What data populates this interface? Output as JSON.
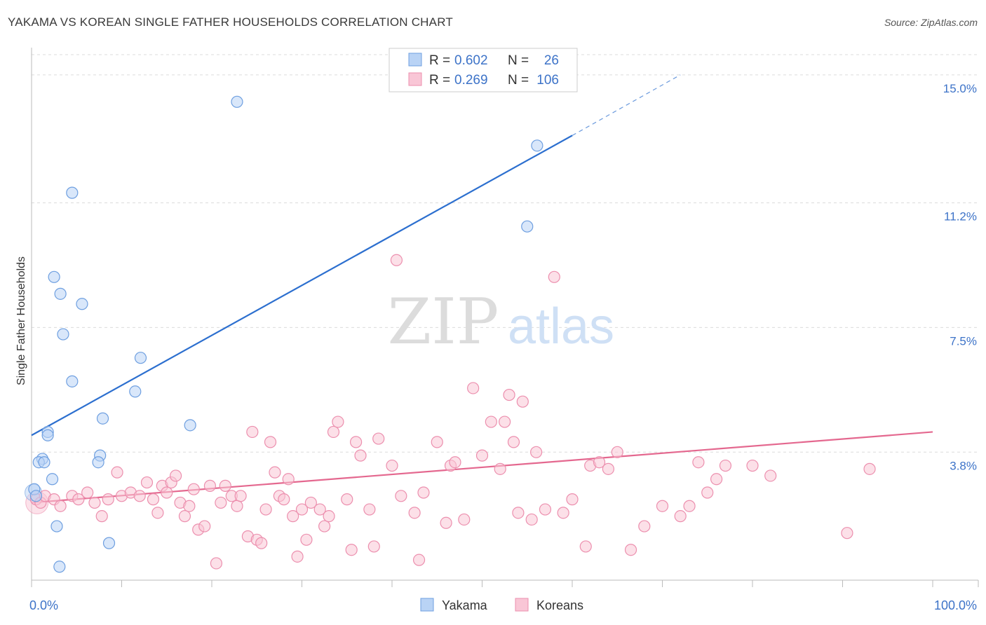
{
  "title": "YAKAMA VS KOREAN SINGLE FATHER HOUSEHOLDS CORRELATION CHART",
  "source": "Source: ZipAtlas.com",
  "watermark": {
    "zip": "ZIP",
    "atlas": "atlas"
  },
  "colors": {
    "yakama_fill": "#b9d3f5",
    "yakama_stroke": "#6e9fe0",
    "yakama_line": "#2c6fcf",
    "korean_fill": "#f9c6d6",
    "korean_stroke": "#ec8fae",
    "korean_line": "#e4688f",
    "tick_text": "#3d73c8",
    "grid": "#dcdcdc"
  },
  "legend_top": [
    {
      "series": "Yakama",
      "r_label": "R =",
      "r_value": "0.602",
      "n_label": "N =",
      "n_value": "26"
    },
    {
      "series": "Koreans",
      "r_label": "R =",
      "r_value": "0.269",
      "n_label": "N =",
      "n_value": "106"
    }
  ],
  "chart_data": {
    "type": "scatter",
    "title": "YAKAMA VS KOREAN SINGLE FATHER HOUSEHOLDS CORRELATION CHART",
    "xlabel": "",
    "ylabel": "Single Father Households",
    "xlim": [
      0,
      100
    ],
    "ylim": [
      0,
      15.6
    ],
    "x_tick_labels": [
      "0.0%",
      "100.0%"
    ],
    "y_ticks": [
      3.8,
      7.5,
      11.2,
      15.0
    ],
    "y_tick_labels": [
      "3.8%",
      "7.5%",
      "11.2%",
      "15.0%"
    ],
    "legend": [
      "Yakama",
      "Koreans"
    ],
    "series": [
      {
        "name": "Yakama",
        "points": [
          [
            22.8,
            14.2
          ],
          [
            56.1,
            12.9
          ],
          [
            4.5,
            11.5
          ],
          [
            55.0,
            10.5
          ],
          [
            2.5,
            9.0
          ],
          [
            3.2,
            8.5
          ],
          [
            5.6,
            8.2
          ],
          [
            3.5,
            7.3
          ],
          [
            12.1,
            6.6
          ],
          [
            4.5,
            5.9
          ],
          [
            11.5,
            5.6
          ],
          [
            7.9,
            4.8
          ],
          [
            17.6,
            4.6
          ],
          [
            1.8,
            4.4
          ],
          [
            1.8,
            4.3
          ],
          [
            7.6,
            3.7
          ],
          [
            1.2,
            3.6
          ],
          [
            0.8,
            3.5
          ],
          [
            1.4,
            3.5
          ],
          [
            7.4,
            3.5
          ],
          [
            2.3,
            3.0
          ],
          [
            0.3,
            2.7
          ],
          [
            0.5,
            2.5
          ],
          [
            2.8,
            1.6
          ],
          [
            8.6,
            1.1
          ],
          [
            3.1,
            0.4
          ]
        ],
        "trend": {
          "x0": 0,
          "y0": 4.3,
          "x1": 60,
          "y1": 13.2,
          "dash_x1": 72,
          "dash_y1": 15.0
        }
      },
      {
        "name": "Koreans",
        "points": [
          [
            0.5,
            2.4
          ],
          [
            1.0,
            2.3
          ],
          [
            1.5,
            2.5
          ],
          [
            2.5,
            2.4
          ],
          [
            3.2,
            2.2
          ],
          [
            4.5,
            2.5
          ],
          [
            5.2,
            2.4
          ],
          [
            6.2,
            2.6
          ],
          [
            7.0,
            2.3
          ],
          [
            7.8,
            1.9
          ],
          [
            8.5,
            2.4
          ],
          [
            9.5,
            3.2
          ],
          [
            10.0,
            2.5
          ],
          [
            11.0,
            2.6
          ],
          [
            12.0,
            2.5
          ],
          [
            12.8,
            2.9
          ],
          [
            13.5,
            2.4
          ],
          [
            14.0,
            2.0
          ],
          [
            14.5,
            2.8
          ],
          [
            15.0,
            2.6
          ],
          [
            15.5,
            2.9
          ],
          [
            16.0,
            3.1
          ],
          [
            16.5,
            2.3
          ],
          [
            17.0,
            1.9
          ],
          [
            17.5,
            2.2
          ],
          [
            18.0,
            2.7
          ],
          [
            18.5,
            1.5
          ],
          [
            19.2,
            1.6
          ],
          [
            19.8,
            2.8
          ],
          [
            20.5,
            0.5
          ],
          [
            21.0,
            2.3
          ],
          [
            21.5,
            2.8
          ],
          [
            22.2,
            2.5
          ],
          [
            22.8,
            2.2
          ],
          [
            23.2,
            2.5
          ],
          [
            24.0,
            1.3
          ],
          [
            24.5,
            4.4
          ],
          [
            25.0,
            1.2
          ],
          [
            25.5,
            1.1
          ],
          [
            26.0,
            2.1
          ],
          [
            26.5,
            4.1
          ],
          [
            27.0,
            3.2
          ],
          [
            27.5,
            2.5
          ],
          [
            28.0,
            2.4
          ],
          [
            28.5,
            3.0
          ],
          [
            29.0,
            1.9
          ],
          [
            29.5,
            0.7
          ],
          [
            30.0,
            2.1
          ],
          [
            30.5,
            1.2
          ],
          [
            31.0,
            2.3
          ],
          [
            32.0,
            2.1
          ],
          [
            32.5,
            1.6
          ],
          [
            33.0,
            1.9
          ],
          [
            33.5,
            4.4
          ],
          [
            34.0,
            4.7
          ],
          [
            35.0,
            2.4
          ],
          [
            35.5,
            0.9
          ],
          [
            36.0,
            4.1
          ],
          [
            36.5,
            3.7
          ],
          [
            37.5,
            2.1
          ],
          [
            38.0,
            1.0
          ],
          [
            38.5,
            4.2
          ],
          [
            40.0,
            3.4
          ],
          [
            40.5,
            9.5
          ],
          [
            41.0,
            2.5
          ],
          [
            42.5,
            2.0
          ],
          [
            43.0,
            0.6
          ],
          [
            43.5,
            2.6
          ],
          [
            45.0,
            4.1
          ],
          [
            46.0,
            1.7
          ],
          [
            46.5,
            3.4
          ],
          [
            47.0,
            3.5
          ],
          [
            48.0,
            1.8
          ],
          [
            49.0,
            5.7
          ],
          [
            50.0,
            3.7
          ],
          [
            51.0,
            4.7
          ],
          [
            52.0,
            3.3
          ],
          [
            52.5,
            4.7
          ],
          [
            53.0,
            5.5
          ],
          [
            53.5,
            4.1
          ],
          [
            54.0,
            2.0
          ],
          [
            54.5,
            5.3
          ],
          [
            55.5,
            1.8
          ],
          [
            56.0,
            3.8
          ],
          [
            57.0,
            2.1
          ],
          [
            58.0,
            9.0
          ],
          [
            59.0,
            2.0
          ],
          [
            60.0,
            2.4
          ],
          [
            61.5,
            1.0
          ],
          [
            62.0,
            3.4
          ],
          [
            63.0,
            3.5
          ],
          [
            64.0,
            3.3
          ],
          [
            65.0,
            3.8
          ],
          [
            66.5,
            0.9
          ],
          [
            68.0,
            1.6
          ],
          [
            70.0,
            2.2
          ],
          [
            72.0,
            1.9
          ],
          [
            73.0,
            2.2
          ],
          [
            74.0,
            3.5
          ],
          [
            75.0,
            2.6
          ],
          [
            76.0,
            3.0
          ],
          [
            77.0,
            3.4
          ],
          [
            80.0,
            3.4
          ],
          [
            82.0,
            3.1
          ],
          [
            90.5,
            1.4
          ],
          [
            93.0,
            3.3
          ]
        ],
        "trend": {
          "x0": 0,
          "y0": 2.3,
          "x1": 100,
          "y1": 4.4
        }
      }
    ]
  }
}
